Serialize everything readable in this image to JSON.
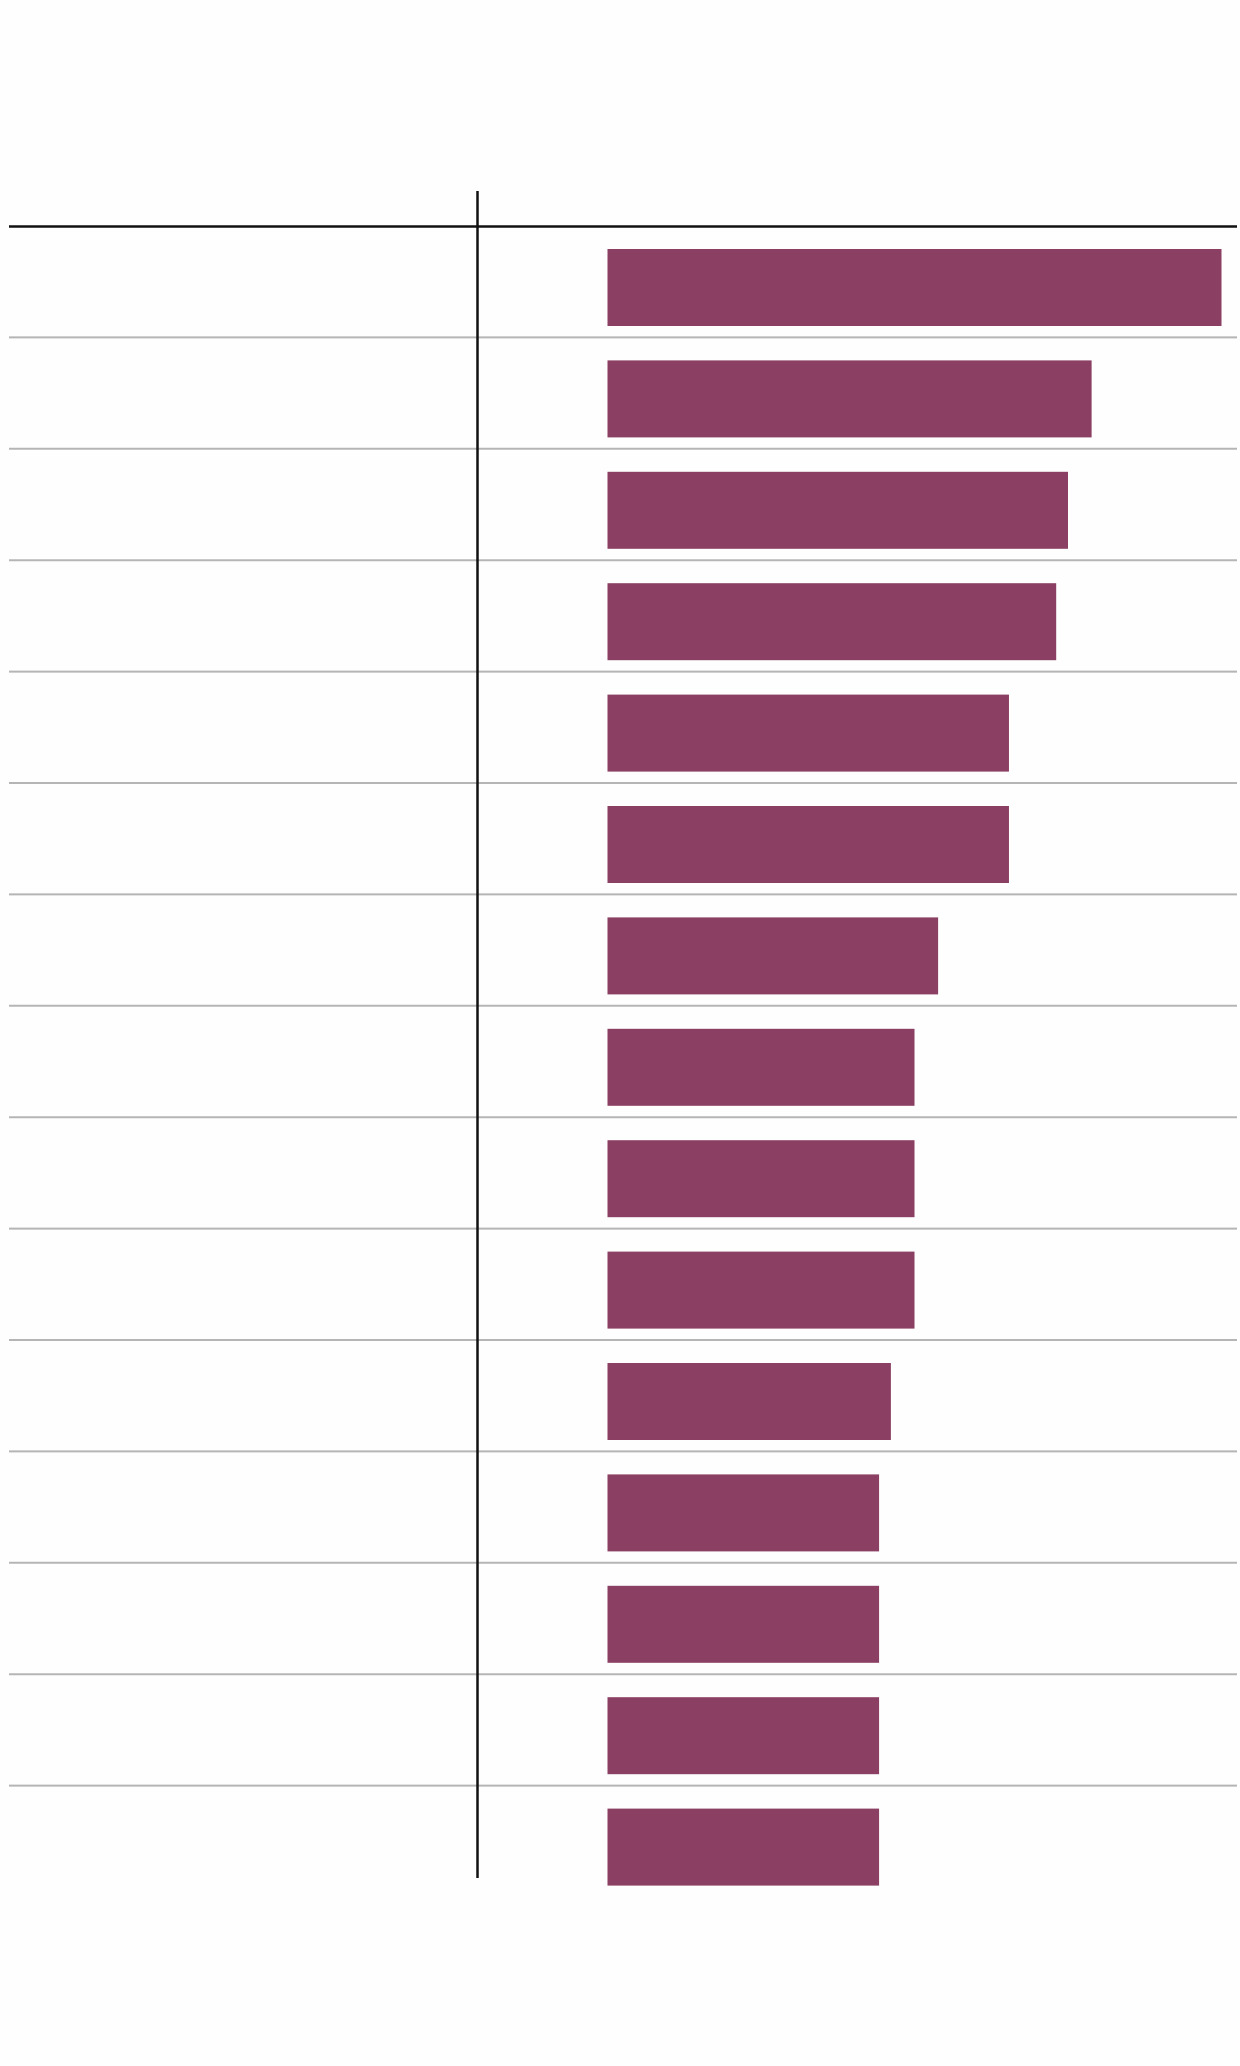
{
  "chart_data": {
    "type": "bar",
    "orientation": "horizontal",
    "categories": [
      null,
      null,
      null,
      null,
      null,
      null,
      null,
      null,
      null,
      null,
      null,
      null,
      null,
      null,
      null
    ],
    "values": [
      52,
      41,
      39,
      38,
      34,
      34,
      28,
      26,
      26,
      26,
      24,
      23,
      23,
      23,
      23
    ],
    "color": "#8b3f62",
    "xlim": [
      0,
      52
    ]
  }
}
